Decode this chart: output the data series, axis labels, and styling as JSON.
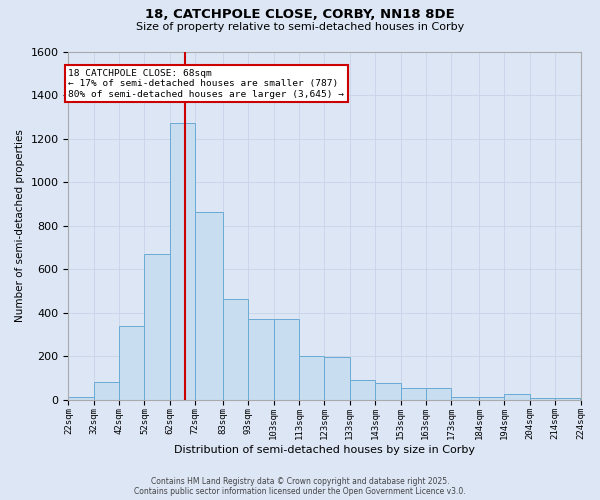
{
  "title_line1": "18, CATCHPOLE CLOSE, CORBY, NN18 8DE",
  "title_line2": "Size of property relative to semi-detached houses in Corby",
  "xlabel": "Distribution of semi-detached houses by size in Corby",
  "ylabel": "Number of semi-detached properties",
  "annotation_title": "18 CATCHPOLE CLOSE: 68sqm",
  "annotation_line2": "← 17% of semi-detached houses are smaller (787)",
  "annotation_line3": "80% of semi-detached houses are larger (3,645) →",
  "footer_line1": "Contains HM Land Registry data © Crown copyright and database right 2025.",
  "footer_line2": "Contains public sector information licensed under the Open Government Licence v3.0.",
  "property_size": 68,
  "bin_edges": [
    22,
    32,
    42,
    52,
    62,
    72,
    83,
    93,
    103,
    113,
    123,
    133,
    143,
    153,
    163,
    173,
    184,
    194,
    204,
    214,
    224
  ],
  "bin_labels": [
    "22sqm",
    "32sqm",
    "42sqm",
    "52sqm",
    "62sqm",
    "72sqm",
    "83sqm",
    "93sqm",
    "103sqm",
    "113sqm",
    "123sqm",
    "133sqm",
    "143sqm",
    "153sqm",
    "163sqm",
    "173sqm",
    "184sqm",
    "194sqm",
    "204sqm",
    "214sqm",
    "224sqm"
  ],
  "counts": [
    10,
    80,
    340,
    670,
    1270,
    860,
    460,
    370,
    370,
    200,
    195,
    90,
    75,
    55,
    55,
    10,
    10,
    25,
    5,
    5
  ],
  "bar_color": "#c9ddf0",
  "bar_edge_color": "#6aaad4",
  "vline_color": "#cc0000",
  "annotation_box_color": "#cc0000",
  "grid_color": "#c8d4e8",
  "background_color": "#dce6f5",
  "plot_bg_color": "#dce6f5",
  "ylim": [
    0,
    1600
  ],
  "yticks": [
    0,
    200,
    400,
    600,
    800,
    1000,
    1200,
    1400,
    1600
  ]
}
